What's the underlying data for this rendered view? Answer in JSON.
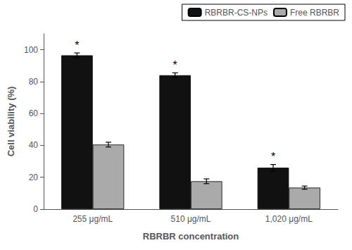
{
  "chart_data": {
    "type": "bar",
    "categories": [
      "255 μg/mL",
      "510 μg/mL",
      "1,020 μg/mL"
    ],
    "series": [
      {
        "name": "RBRBR-CS-NPs",
        "color": "#111111",
        "values": [
          96.5,
          84.0,
          26.0
        ],
        "errors": [
          1.5,
          1.5,
          2.0
        ],
        "annotations": [
          "*",
          "*",
          "*"
        ]
      },
      {
        "name": "Free RBRBR",
        "color": "#aaaaaa",
        "values": [
          40.5,
          17.5,
          13.5
        ],
        "errors": [
          1.5,
          1.5,
          1.0
        ]
      }
    ],
    "xlabel": "RBRBR concentration",
    "ylabel": "Cell viability (%)",
    "ylim": [
      0,
      110
    ],
    "yticks": [
      0,
      20,
      40,
      60,
      80,
      100
    ],
    "grid": false,
    "legend": "upper right"
  }
}
